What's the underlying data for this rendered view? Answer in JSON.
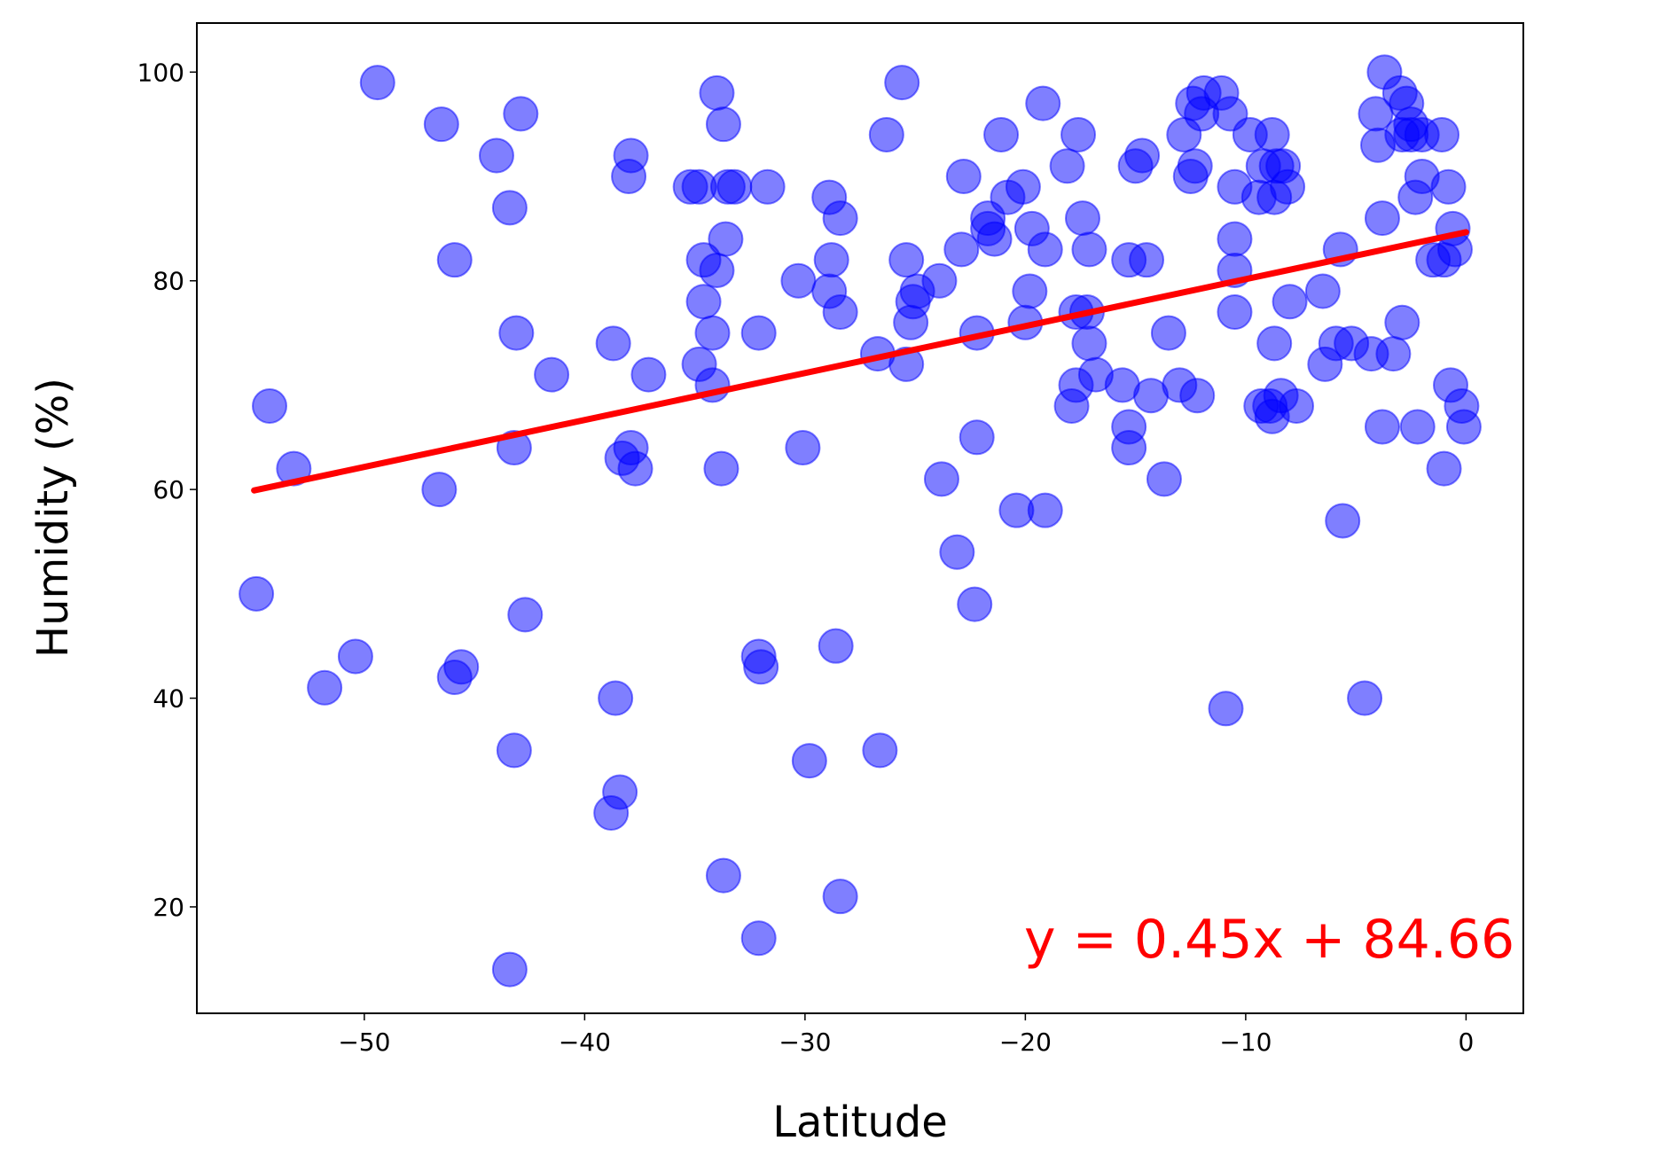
{
  "chart_data": {
    "type": "scatter",
    "x_label": "Latitude",
    "y_label": "Humidity (%)",
    "annotation": "y = 0.45x + 84.66",
    "color": "#0000ff",
    "x": [
      -49.4,
      -54.3,
      -53.2,
      -54.9,
      -51.8,
      -50.4,
      -46.5,
      -46.6,
      -45.9,
      -45.9,
      -45.6,
      -44.0,
      -43.4,
      -42.9,
      -43.1,
      -43.2,
      -42.7,
      -43.2,
      -43.4,
      -41.5,
      -38.7,
      -38.6,
      -38.4,
      -38.8,
      -38.0,
      -37.9,
      -38.3,
      -37.9,
      -37.7,
      -37.1,
      -35.2,
      -34.8,
      -34.8,
      -34.6,
      -34.6,
      -34.2,
      -34.2,
      -34.0,
      -34.0,
      -33.7,
      -33.6,
      -33.5,
      -33.2,
      -33.8,
      -33.7,
      -31.7,
      -32.1,
      -32.1,
      -32.0,
      -32.1,
      -30.3,
      -30.1,
      -29.8,
      -28.9,
      -28.8,
      -28.9,
      -28.4,
      -28.4,
      -28.6,
      -28.4,
      -26.7,
      -26.6,
      -26.3,
      -25.6,
      -25.4,
      -25.4,
      -25.2,
      -25.1,
      -24.9,
      -23.9,
      -23.8,
      -23.1,
      -22.8,
      -22.9,
      -22.3,
      -22.2,
      -22.2,
      -21.7,
      -21.7,
      -21.4,
      -21.1,
      -20.8,
      -20.4,
      -20.1,
      -20.0,
      -19.8,
      -19.7,
      -19.2,
      -19.1,
      -19.1,
      -18.1,
      -17.9,
      -17.7,
      -17.7,
      -17.6,
      -17.4,
      -17.2,
      -17.1,
      -17.1,
      -16.8,
      -15.6,
      -15.3,
      -15.3,
      -15.3,
      -15.0,
      -14.7,
      -14.5,
      -14.3,
      -13.7,
      -13.5,
      -13.0,
      -12.8,
      -12.4,
      -12.5,
      -12.3,
      -12.2,
      -12.0,
      -11.9,
      -11.1,
      -10.7,
      -10.9,
      -10.5,
      -10.5,
      -10.5,
      -10.5,
      -9.8,
      -9.4,
      -9.3,
      -9.2,
      -8.9,
      -8.8,
      -8.8,
      -8.7,
      -8.7,
      -8.6,
      -8.4,
      -8.3,
      -8.1,
      -8.0,
      -7.7,
      -6.5,
      -6.4,
      -5.9,
      -5.7,
      -5.6,
      -5.2,
      -4.6,
      -4.3,
      -4.1,
      -4.0,
      -3.8,
      -3.8,
      -3.7,
      -3.3,
      -3.0,
      -2.9,
      -2.9,
      -2.7,
      -2.5,
      -2.5,
      -2.3,
      -2.2,
      -2.0,
      -2.0,
      -1.5,
      -1.1,
      -1.0,
      -1.0,
      -0.8,
      -0.7,
      -0.6,
      -0.5,
      -0.2,
      -0.1
    ],
    "values": [
      99,
      68,
      62,
      50,
      41,
      44,
      95,
      60,
      82,
      42,
      43,
      92,
      87,
      96,
      75,
      64,
      48,
      35,
      14,
      71,
      74,
      40,
      31,
      29,
      90,
      92,
      63,
      64,
      62,
      71,
      89,
      89,
      72,
      78,
      82,
      75,
      70,
      81,
      98,
      95,
      84,
      89,
      89,
      62,
      23,
      89,
      75,
      44,
      43,
      17,
      80,
      64,
      34,
      88,
      82,
      79,
      86,
      77,
      45,
      21,
      73,
      35,
      94,
      99,
      82,
      72,
      76,
      78,
      79,
      80,
      61,
      54,
      90,
      83,
      49,
      75,
      65,
      86,
      85,
      84,
      94,
      88,
      58,
      89,
      76,
      79,
      85,
      97,
      83,
      58,
      91,
      68,
      70,
      77,
      94,
      86,
      77,
      83,
      74,
      71,
      70,
      66,
      64,
      82,
      91,
      92,
      82,
      69,
      61,
      75,
      70,
      94,
      97,
      90,
      91,
      69,
      96,
      98,
      98,
      96,
      39,
      89,
      84,
      81,
      77,
      94,
      88,
      68,
      91,
      68,
      67,
      94,
      74,
      88,
      91,
      69,
      91,
      89,
      78,
      68,
      79,
      72,
      74,
      83,
      57,
      74,
      40,
      73,
      96,
      93,
      86,
      66,
      100,
      73,
      98,
      76,
      94,
      97,
      95,
      94,
      88,
      66,
      94,
      90,
      82,
      94,
      82,
      62,
      89,
      70,
      85,
      83,
      68,
      66
    ],
    "trendline": {
      "color": "#ff0000",
      "x": [
        -55,
        0
      ],
      "values": [
        59.91,
        84.66
      ]
    },
    "xlim": [
      -57.6,
      2.6
    ],
    "ylim": [
      9.8,
      104.7
    ],
    "xticks": [
      {
        "value": -50,
        "label": "−50"
      },
      {
        "value": -40,
        "label": "−40"
      },
      {
        "value": -30,
        "label": "−30"
      },
      {
        "value": -20,
        "label": "−20"
      },
      {
        "value": -10,
        "label": "−10"
      },
      0
    ],
    "yticks": [
      20,
      40,
      60,
      80,
      100
    ],
    "grid": false
  }
}
